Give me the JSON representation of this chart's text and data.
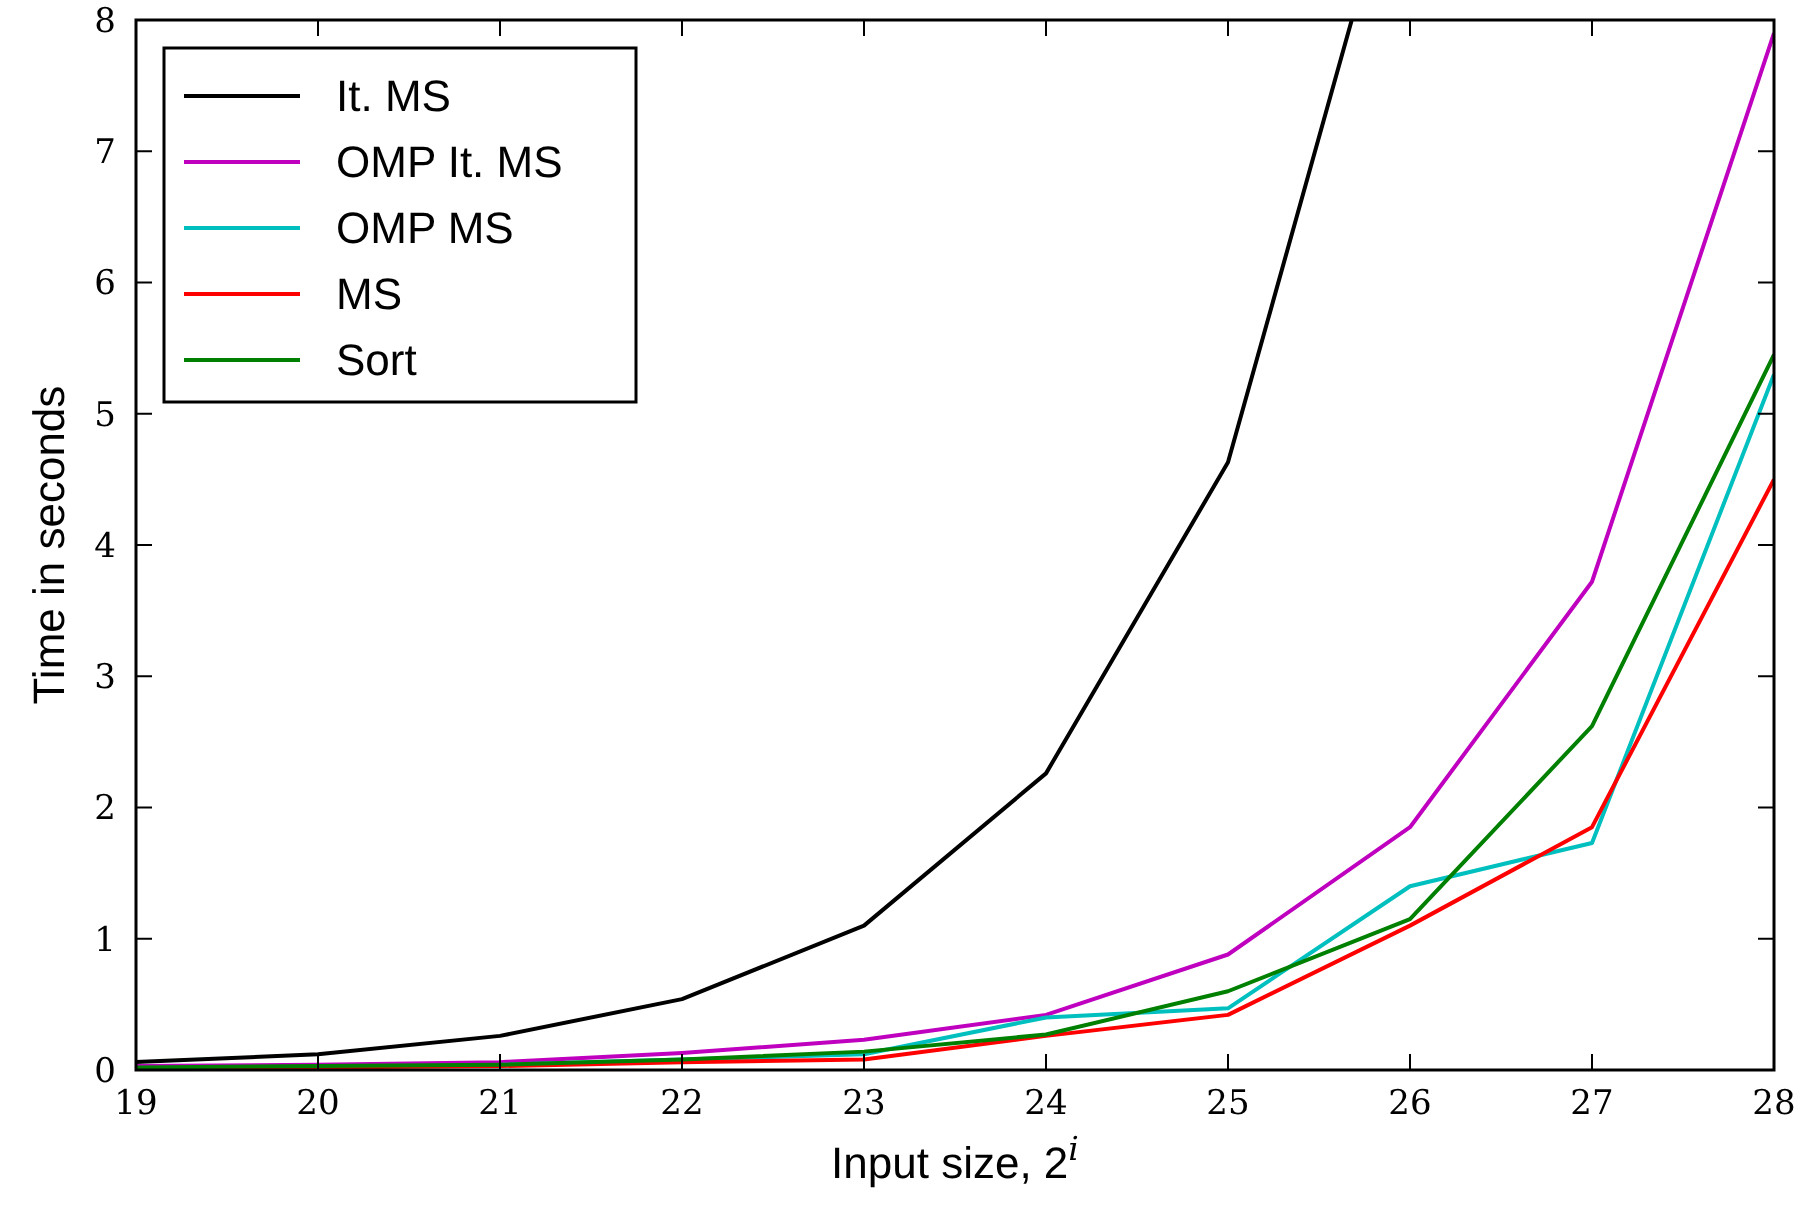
{
  "chart_data": {
    "type": "line",
    "xlabel": "Input size, 2$^{i}$",
    "ylabel": "Time in seconds",
    "x": [
      19,
      20,
      21,
      22,
      23,
      24,
      25,
      26,
      27,
      28
    ],
    "xlim": [
      19,
      28
    ],
    "xticks": [
      19,
      20,
      21,
      22,
      23,
      24,
      25,
      26,
      27,
      28
    ],
    "ylim": [
      0,
      8
    ],
    "yticks": [
      0,
      1,
      2,
      3,
      4,
      5,
      6,
      7,
      8
    ],
    "grid": false,
    "legend": "top left",
    "marker": "none",
    "line_style": "solid",
    "series": [
      {
        "name": "It. MS",
        "color": "#000000",
        "x": [
          19,
          20,
          21,
          22,
          23,
          24,
          25,
          25.68
        ],
        "values": [
          0.06,
          0.12,
          0.26,
          0.54,
          1.1,
          2.26,
          4.63,
          8
        ]
      },
      {
        "name": "OMP It. MS",
        "color": "#bf00bf",
        "values": [
          0.03,
          0.04,
          0.06,
          0.13,
          0.23,
          0.42,
          0.88,
          1.85,
          3.72,
          7.9
        ]
      },
      {
        "name": "OMP MS",
        "color": "#00bfbf",
        "values": [
          null,
          null,
          0.04,
          0.08,
          0.12,
          0.4,
          0.47,
          1.4,
          1.73,
          5.3
        ]
      },
      {
        "name": "MS",
        "color": "#ff0000",
        "values": [
          0.01,
          0.02,
          0.03,
          0.06,
          0.08,
          0.26,
          0.42,
          1.1,
          1.85,
          4.5
        ]
      },
      {
        "name": "Sort",
        "color": "#008000",
        "values": [
          0.02,
          0.03,
          0.04,
          0.08,
          0.14,
          0.27,
          0.6,
          1.15,
          2.62,
          5.45
        ]
      }
    ]
  }
}
